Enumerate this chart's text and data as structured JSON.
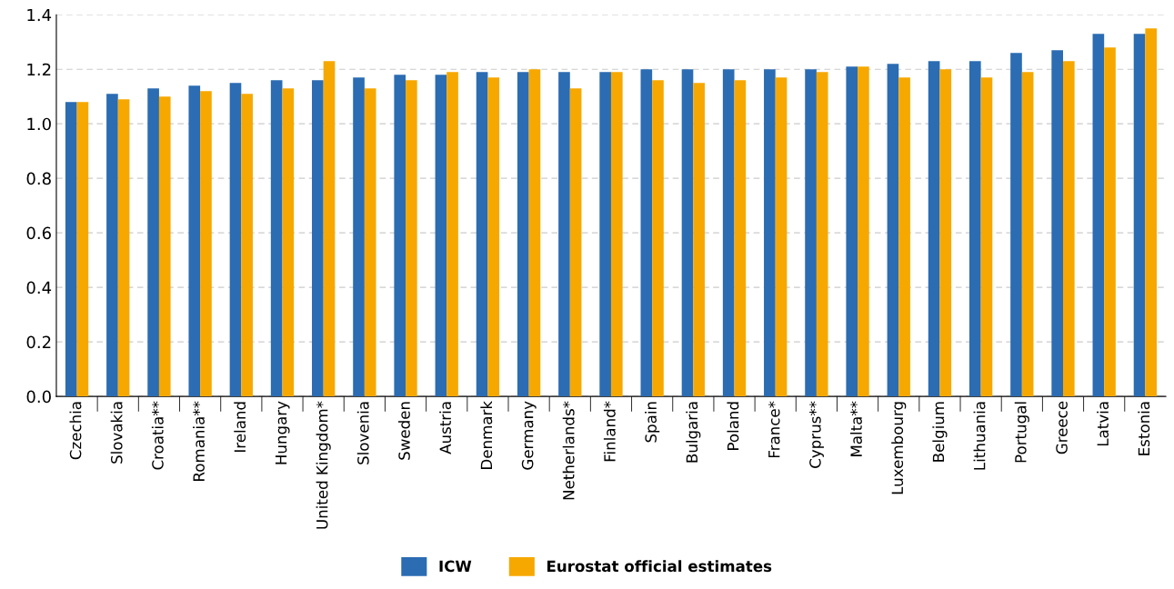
{
  "chart_data": {
    "type": "bar",
    "categories": [
      "Czechia",
      "Slovakia",
      "Croatia**",
      "Romania**",
      "Ireland",
      "Hungary",
      "United Kingdom*",
      "Slovenia",
      "Sweden",
      "Austria",
      "Denmark",
      "Germany",
      "Netherlands*",
      "Finland*",
      "Spain",
      "Bulgaria",
      "Poland",
      "France*",
      "Cyprus**",
      "Malta**",
      "Luxembourg",
      "Belgium",
      "Lithuania",
      "Portugal",
      "Greece",
      "Latvia",
      "Estonia"
    ],
    "series": [
      {
        "name": "ICW",
        "color": "#2b6cb3",
        "values": [
          1.08,
          1.11,
          1.13,
          1.14,
          1.15,
          1.16,
          1.16,
          1.17,
          1.18,
          1.18,
          1.19,
          1.19,
          1.19,
          1.19,
          1.2,
          1.2,
          1.2,
          1.2,
          1.2,
          1.21,
          1.22,
          1.23,
          1.23,
          1.26,
          1.27,
          1.33,
          1.33
        ]
      },
      {
        "name": "Eurostat official estimates",
        "color": "#f6a800",
        "values": [
          1.08,
          1.09,
          1.1,
          1.12,
          1.11,
          1.13,
          1.23,
          1.13,
          1.16,
          1.19,
          1.17,
          1.2,
          1.13,
          1.19,
          1.16,
          1.15,
          1.16,
          1.17,
          1.19,
          1.21,
          1.17,
          1.2,
          1.17,
          1.19,
          1.23,
          1.28,
          1.35
        ]
      }
    ],
    "ylim": [
      0,
      1.4
    ],
    "yticks": [
      {
        "value": 0,
        "label": "0.0"
      },
      {
        "value": 0.2,
        "label": "0.2"
      },
      {
        "value": 0.4,
        "label": "0.4"
      },
      {
        "value": 0.6,
        "label": "0.6"
      },
      {
        "value": 0.8,
        "label": "0.8"
      },
      {
        "value": 1.0,
        "label": "1.0"
      },
      {
        "value": 1.2,
        "label": "1.2"
      },
      {
        "value": 1.4,
        "label": "1.4"
      }
    ],
    "grid": "y",
    "legend": "bottom"
  }
}
